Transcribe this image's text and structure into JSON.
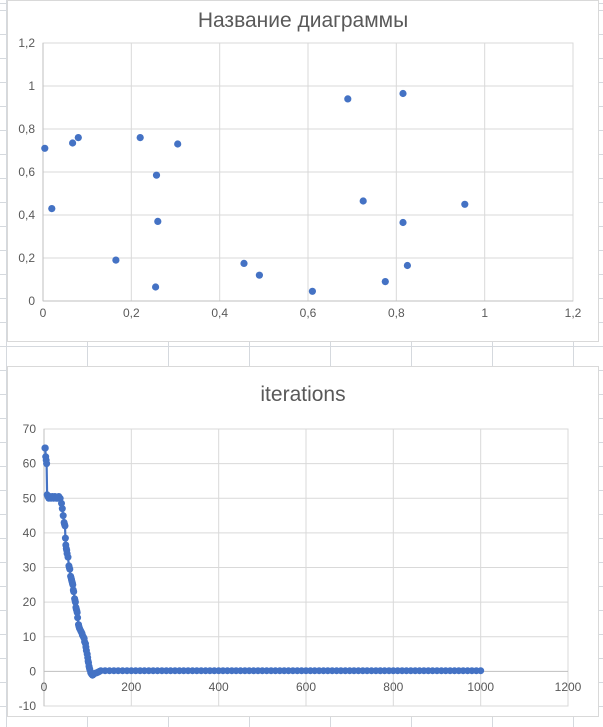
{
  "colors": {
    "marker": "#4472C4",
    "gridline": "#D9D9D9",
    "axis": "#BFBFBF",
    "text": "#595959",
    "sheet_grid": "#D5D9DE",
    "chart_background": "#FFFFFF"
  },
  "chart_data": [
    {
      "type": "scatter",
      "title": "Название диаграммы",
      "legend": "none",
      "grid": true,
      "x_axis": {
        "min": 0,
        "max": 1.2,
        "tick_values": [
          0,
          0.2,
          0.4,
          0.6,
          0.8,
          1,
          1.2
        ],
        "tick_labels": [
          "0",
          "0,2",
          "0,4",
          "0,6",
          "0,8",
          "1",
          "1,2"
        ]
      },
      "y_axis": {
        "min": 0,
        "max": 1.2,
        "tick_values": [
          0,
          0.2,
          0.4,
          0.6,
          0.8,
          1,
          1.2
        ],
        "tick_labels": [
          "0",
          "0,2",
          "0,4",
          "0,6",
          "0,8",
          "1",
          "1,2"
        ]
      },
      "connect_line": false,
      "points": [
        [
          0.004,
          0.71
        ],
        [
          0.02,
          0.43
        ],
        [
          0.067,
          0.735
        ],
        [
          0.08,
          0.76
        ],
        [
          0.165,
          0.19
        ],
        [
          0.22,
          0.76
        ],
        [
          0.255,
          0.065
        ],
        [
          0.257,
          0.585
        ],
        [
          0.26,
          0.37
        ],
        [
          0.305,
          0.73
        ],
        [
          0.455,
          0.175
        ],
        [
          0.49,
          0.12
        ],
        [
          0.61,
          0.045
        ],
        [
          0.69,
          0.94
        ],
        [
          0.725,
          0.465
        ],
        [
          0.775,
          0.09
        ],
        [
          0.815,
          0.965
        ],
        [
          0.815,
          0.365
        ],
        [
          0.825,
          0.165
        ],
        [
          0.955,
          0.45
        ]
      ]
    },
    {
      "type": "line",
      "title": "iterations",
      "legend": "none",
      "grid": true,
      "x_axis": {
        "min": 0,
        "max": 1200,
        "tick_values": [
          0,
          200,
          400,
          600,
          800,
          1000,
          1200
        ],
        "tick_labels": [
          "0",
          "200",
          "400",
          "600",
          "800",
          "1000",
          "1200"
        ]
      },
      "y_axis": {
        "min": -10,
        "max": 70,
        "tick_values": [
          -10,
          0,
          10,
          20,
          30,
          40,
          50,
          60,
          70
        ],
        "tick_labels": [
          "-10",
          "0",
          "10",
          "20",
          "30",
          "40",
          "50",
          "60",
          "70"
        ]
      },
      "connect_line": true,
      "points": [
        [
          2,
          64.5
        ],
        [
          3,
          64.5
        ],
        [
          4,
          62
        ],
        [
          5,
          61
        ],
        [
          6,
          60
        ],
        [
          7,
          51
        ],
        [
          9,
          50.5
        ],
        [
          11,
          50
        ],
        [
          13,
          50.5
        ],
        [
          16,
          50
        ],
        [
          19,
          50.5
        ],
        [
          22,
          50
        ],
        [
          25,
          50.5
        ],
        [
          28,
          50
        ],
        [
          31,
          50
        ],
        [
          34,
          50.5
        ],
        [
          37,
          50
        ],
        [
          40,
          48.5
        ],
        [
          42,
          47
        ],
        [
          44,
          45
        ],
        [
          46,
          43
        ],
        [
          47,
          42.5
        ],
        [
          48,
          42
        ],
        [
          49,
          38.5
        ],
        [
          50,
          36.5
        ],
        [
          51,
          35.5
        ],
        [
          52,
          35
        ],
        [
          53,
          34
        ],
        [
          55,
          33
        ],
        [
          57,
          30.5
        ],
        [
          58,
          30
        ],
        [
          59,
          29.5
        ],
        [
          61,
          27.5
        ],
        [
          62,
          27
        ],
        [
          63,
          26.5
        ],
        [
          64,
          26
        ],
        [
          65,
          25.5
        ],
        [
          66,
          25
        ],
        [
          67,
          23.5
        ],
        [
          68,
          23
        ],
        [
          70,
          21
        ],
        [
          71,
          20.5
        ],
        [
          72,
          20
        ],
        [
          73,
          18.5
        ],
        [
          74,
          18
        ],
        [
          75,
          17.5
        ],
        [
          76,
          17
        ],
        [
          77,
          15.5
        ],
        [
          79,
          13.5
        ],
        [
          80,
          13
        ],
        [
          81,
          12.5
        ],
        [
          83,
          12
        ],
        [
          85,
          11.5
        ],
        [
          87,
          11
        ],
        [
          88,
          10.5
        ],
        [
          90,
          10
        ],
        [
          92,
          9.5
        ],
        [
          93,
          8.5
        ],
        [
          95,
          8
        ],
        [
          96,
          7
        ],
        [
          97,
          6
        ],
        [
          99,
          5
        ],
        [
          100,
          4
        ],
        [
          101,
          3
        ],
        [
          102,
          2.5
        ],
        [
          103,
          1.5
        ],
        [
          104,
          1
        ],
        [
          105,
          0.5
        ],
        [
          107,
          -0.4
        ],
        [
          109,
          -0.8
        ],
        [
          111,
          -1.1
        ],
        [
          113,
          -0.9
        ],
        [
          115,
          -0.6
        ],
        [
          118,
          -0.5
        ],
        [
          121,
          -0.4
        ],
        [
          124,
          -0.2
        ],
        [
          127,
          0
        ],
        [
          130,
          0.2
        ],
        [
          140,
          0.2
        ],
        [
          150,
          0.2
        ],
        [
          160,
          0.2
        ],
        [
          170,
          0.2
        ],
        [
          180,
          0.2
        ],
        [
          190,
          0.2
        ],
        [
          200,
          0.2
        ],
        [
          210,
          0.2
        ],
        [
          220,
          0.2
        ],
        [
          230,
          0.2
        ],
        [
          240,
          0.2
        ],
        [
          250,
          0.2
        ],
        [
          260,
          0.2
        ],
        [
          270,
          0.2
        ],
        [
          280,
          0.2
        ],
        [
          290,
          0.2
        ],
        [
          300,
          0.2
        ],
        [
          310,
          0.2
        ],
        [
          320,
          0.2
        ],
        [
          330,
          0.2
        ],
        [
          340,
          0.2
        ],
        [
          350,
          0.2
        ],
        [
          360,
          0.2
        ],
        [
          370,
          0.2
        ],
        [
          380,
          0.2
        ],
        [
          390,
          0.2
        ],
        [
          400,
          0.2
        ],
        [
          410,
          0.2
        ],
        [
          420,
          0.2
        ],
        [
          430,
          0.2
        ],
        [
          440,
          0.2
        ],
        [
          450,
          0.2
        ],
        [
          460,
          0.2
        ],
        [
          470,
          0.2
        ],
        [
          480,
          0.2
        ],
        [
          490,
          0.2
        ],
        [
          500,
          0.2
        ],
        [
          510,
          0.2
        ],
        [
          520,
          0.2
        ],
        [
          530,
          0.2
        ],
        [
          540,
          0.2
        ],
        [
          550,
          0.2
        ],
        [
          560,
          0.2
        ],
        [
          570,
          0.2
        ],
        [
          580,
          0.2
        ],
        [
          590,
          0.2
        ],
        [
          600,
          0.2
        ],
        [
          610,
          0.2
        ],
        [
          620,
          0.2
        ],
        [
          630,
          0.2
        ],
        [
          640,
          0.2
        ],
        [
          650,
          0.2
        ],
        [
          660,
          0.2
        ],
        [
          670,
          0.2
        ],
        [
          680,
          0.2
        ],
        [
          690,
          0.2
        ],
        [
          700,
          0.2
        ],
        [
          710,
          0.2
        ],
        [
          720,
          0.2
        ],
        [
          730,
          0.2
        ],
        [
          740,
          0.2
        ],
        [
          750,
          0.2
        ],
        [
          760,
          0.2
        ],
        [
          770,
          0.2
        ],
        [
          780,
          0.2
        ],
        [
          790,
          0.2
        ],
        [
          800,
          0.2
        ],
        [
          810,
          0.2
        ],
        [
          820,
          0.2
        ],
        [
          830,
          0.2
        ],
        [
          840,
          0.2
        ],
        [
          850,
          0.2
        ],
        [
          860,
          0.2
        ],
        [
          870,
          0.2
        ],
        [
          880,
          0.2
        ],
        [
          890,
          0.2
        ],
        [
          900,
          0.2
        ],
        [
          910,
          0.2
        ],
        [
          920,
          0.2
        ],
        [
          930,
          0.2
        ],
        [
          940,
          0.2
        ],
        [
          950,
          0.2
        ],
        [
          960,
          0.2
        ],
        [
          970,
          0.2
        ],
        [
          980,
          0.2
        ],
        [
          990,
          0.2
        ],
        [
          1000,
          0.2
        ]
      ]
    }
  ]
}
